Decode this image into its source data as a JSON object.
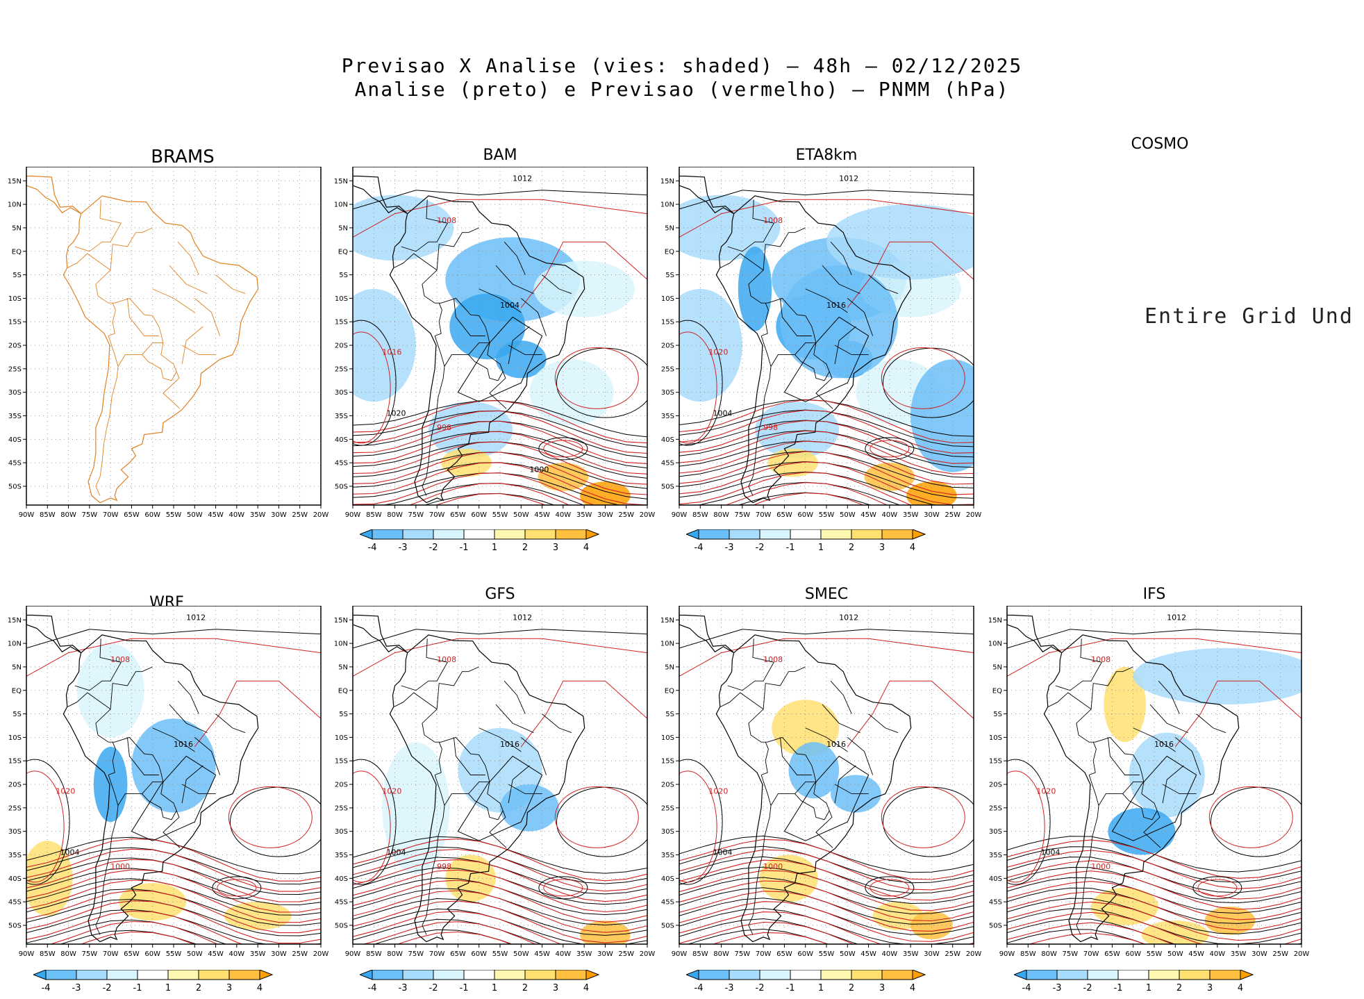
{
  "header": {
    "line1": "Previsao X Analise (vies: shaded) – 48h – 02/12/2025",
    "line2": "Analise (preto) e Previsao (vermelho) – PNMM (hPa)"
  },
  "axes": {
    "lat_labels": [
      "15N",
      "10N",
      "5N",
      "EQ",
      "5S",
      "10S",
      "15S",
      "20S",
      "25S",
      "30S",
      "35S",
      "40S",
      "45S",
      "50S"
    ],
    "lon_labels": [
      "90W",
      "85W",
      "80W",
      "75W",
      "70W",
      "65W",
      "60W",
      "55W",
      "50W",
      "45W",
      "40W",
      "35W",
      "30W",
      "25W",
      "20W"
    ]
  },
  "colorbar": {
    "labels": [
      "-4",
      "-3",
      "-2",
      "-1",
      "1",
      "2",
      "3",
      "4"
    ],
    "colors": [
      "#38a8f0",
      "#6cc0f8",
      "#a8dcfc",
      "#d8f4fc",
      "#ffffff",
      "#fff8b0",
      "#ffe070",
      "#ffc040",
      "#ffa000"
    ]
  },
  "colors": {
    "analysis": "#000000",
    "forecast": "#d02020",
    "map_outline": "#e08020"
  },
  "panels": [
    {
      "model": "BRAMS",
      "status": "map-only"
    },
    {
      "model": "BAM",
      "status": "bias",
      "isobar_labels": [
        "1012",
        "1008",
        "1004",
        "1016",
        "1020",
        "998",
        "1000"
      ]
    },
    {
      "model": "ETA8km",
      "status": "bias",
      "isobar_labels": [
        "1012",
        "1008",
        "1016",
        "1020",
        "1004",
        "998"
      ]
    },
    {
      "model": "COSMO",
      "status": "missing",
      "message": "Entire Grid Und"
    },
    {
      "model": "WRF",
      "status": "bias",
      "isobar_labels": [
        "1012",
        "1008",
        "1016",
        "1020",
        "1004",
        "1000"
      ]
    },
    {
      "model": "GFS",
      "status": "bias",
      "isobar_labels": [
        "1012",
        "1008",
        "1016",
        "1020",
        "1004",
        "998"
      ]
    },
    {
      "model": "SMEC",
      "status": "bias",
      "isobar_labels": [
        "1012",
        "1008",
        "1016",
        "1020",
        "1004",
        "1000"
      ]
    },
    {
      "model": "IFS",
      "status": "bias",
      "isobar_labels": [
        "1012",
        "1008",
        "1016",
        "1020",
        "1004",
        "1000"
      ]
    }
  ]
}
